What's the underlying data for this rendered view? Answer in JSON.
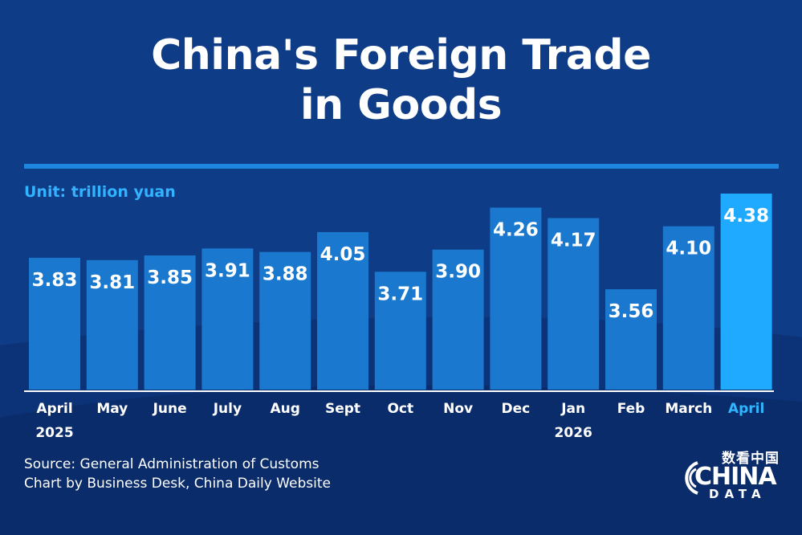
{
  "title_lines": [
    "China's Foreign Trade",
    "in Goods"
  ],
  "unit_label": "Unit: trillion yuan",
  "source_lines": [
    "Source: General Administration of Customs",
    "Chart by Business Desk, China Daily Website"
  ],
  "logo": {
    "cn": "数看中国",
    "main": "CHINA",
    "sub": "DATA"
  },
  "colors": {
    "background": "#0f3c86",
    "bar": "#1a78cf",
    "bar_highlight": "#1fa9ff",
    "accent_text": "#33b3ff",
    "rule": "#1f86e0"
  },
  "chart_data": {
    "type": "bar",
    "title": "China's Foreign Trade in Goods",
    "unit": "Unit: trillion yuan",
    "categories": [
      [
        "April",
        "2025"
      ],
      [
        "May"
      ],
      [
        "June"
      ],
      [
        "July"
      ],
      [
        "Aug"
      ],
      [
        "Sept"
      ],
      [
        "Oct"
      ],
      [
        "Nov"
      ],
      [
        "Dec"
      ],
      [
        "Jan",
        "2026"
      ],
      [
        "Feb"
      ],
      [
        "March"
      ],
      [
        "April"
      ]
    ],
    "values": [
      3.83,
      3.81,
      3.85,
      3.91,
      3.88,
      4.05,
      3.71,
      3.9,
      4.26,
      4.17,
      3.56,
      4.1,
      4.38
    ],
    "value_labels": [
      "3.83",
      "3.81",
      "3.85",
      "3.91",
      "3.88",
      "4.05",
      "3.71",
      "3.90",
      "4.26",
      "4.17",
      "3.56",
      "4.10",
      "4.38"
    ],
    "highlight_index": 12,
    "ylim": [
      0,
      4.38
    ],
    "grid": false
  }
}
